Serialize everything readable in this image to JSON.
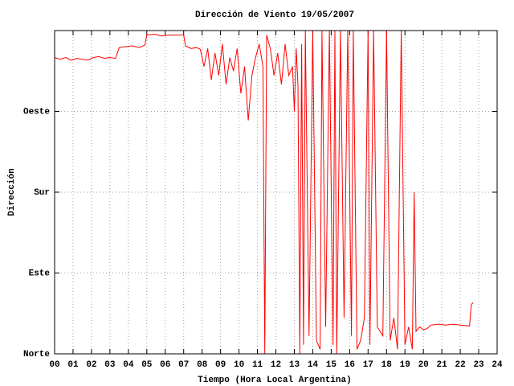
{
  "chart_data": {
    "type": "line",
    "title": "Dirección de Viento 19/05/2007",
    "x_label": "Tiempo (Hora Local Argentina)",
    "y_label": "Dirección",
    "color": "#ff0000",
    "grid": true,
    "xlim": [
      0,
      24
    ],
    "ylim": [
      0,
      360
    ],
    "xticks": [
      {
        "value": 0,
        "label": "00"
      },
      {
        "value": 1,
        "label": "01"
      },
      {
        "value": 2,
        "label": "02"
      },
      {
        "value": 3,
        "label": "03"
      },
      {
        "value": 4,
        "label": "04"
      },
      {
        "value": 5,
        "label": "05"
      },
      {
        "value": 6,
        "label": "06"
      },
      {
        "value": 7,
        "label": "07"
      },
      {
        "value": 8,
        "label": "08"
      },
      {
        "value": 9,
        "label": "09"
      },
      10,
      11,
      12,
      13,
      14,
      15,
      16,
      17,
      18,
      19,
      20,
      21,
      22,
      23,
      24
    ],
    "yticks": [
      {
        "value": 0,
        "label": "Norte"
      },
      {
        "value": 90,
        "label": "Este"
      },
      {
        "value": 180,
        "label": "Sur"
      },
      {
        "value": 270,
        "label": "Oeste"
      }
    ],
    "x": [
      0.0,
      0.3,
      0.6,
      0.9,
      1.2,
      1.5,
      1.8,
      2.1,
      2.4,
      2.7,
      3.0,
      3.3,
      3.5,
      3.8,
      4.2,
      4.6,
      4.9,
      5.0,
      5.4,
      5.8,
      6.2,
      6.6,
      7.0,
      7.1,
      7.4,
      7.7,
      7.9,
      8.1,
      8.3,
      8.5,
      8.7,
      8.9,
      9.1,
      9.3,
      9.5,
      9.7,
      9.9,
      10.1,
      10.3,
      10.5,
      10.7,
      10.9,
      11.1,
      11.3,
      11.4,
      11.5,
      11.7,
      11.9,
      12.1,
      12.3,
      12.5,
      12.7,
      12.9,
      13.0,
      13.1,
      13.2,
      13.3,
      13.4,
      13.5,
      13.6,
      13.8,
      14.0,
      14.2,
      14.4,
      14.5,
      14.7,
      14.9,
      15.1,
      15.2,
      15.3,
      15.5,
      15.7,
      15.9,
      16.1,
      16.2,
      16.4,
      16.6,
      16.8,
      17.0,
      17.1,
      17.3,
      17.5,
      17.8,
      18.0,
      18.2,
      18.4,
      18.6,
      18.8,
      19.0,
      19.2,
      19.4,
      19.5,
      19.6,
      19.8,
      20.0,
      20.2,
      20.4,
      20.8,
      21.2,
      21.6,
      22.0,
      22.5,
      22.6,
      22.7
    ],
    "values": [
      330,
      328,
      330,
      327,
      329,
      328,
      327,
      330,
      331,
      329,
      330,
      329,
      341,
      342,
      343,
      341,
      344,
      355,
      356,
      354,
      355,
      355,
      355,
      343,
      340,
      341,
      339,
      320,
      340,
      305,
      335,
      310,
      345,
      300,
      330,
      315,
      340,
      290,
      320,
      260,
      310,
      330,
      345,
      320,
      0,
      355,
      340,
      310,
      335,
      300,
      345,
      310,
      320,
      270,
      340,
      300,
      0,
      345,
      10,
      360,
      20,
      360,
      15,
      5,
      360,
      30,
      360,
      10,
      360,
      0,
      360,
      40,
      360,
      20,
      360,
      5,
      15,
      40,
      360,
      10,
      360,
      30,
      20,
      360,
      15,
      40,
      5,
      360,
      10,
      30,
      5,
      180,
      25,
      30,
      27,
      28,
      32,
      33,
      32,
      33,
      32,
      31,
      55,
      57
    ]
  }
}
